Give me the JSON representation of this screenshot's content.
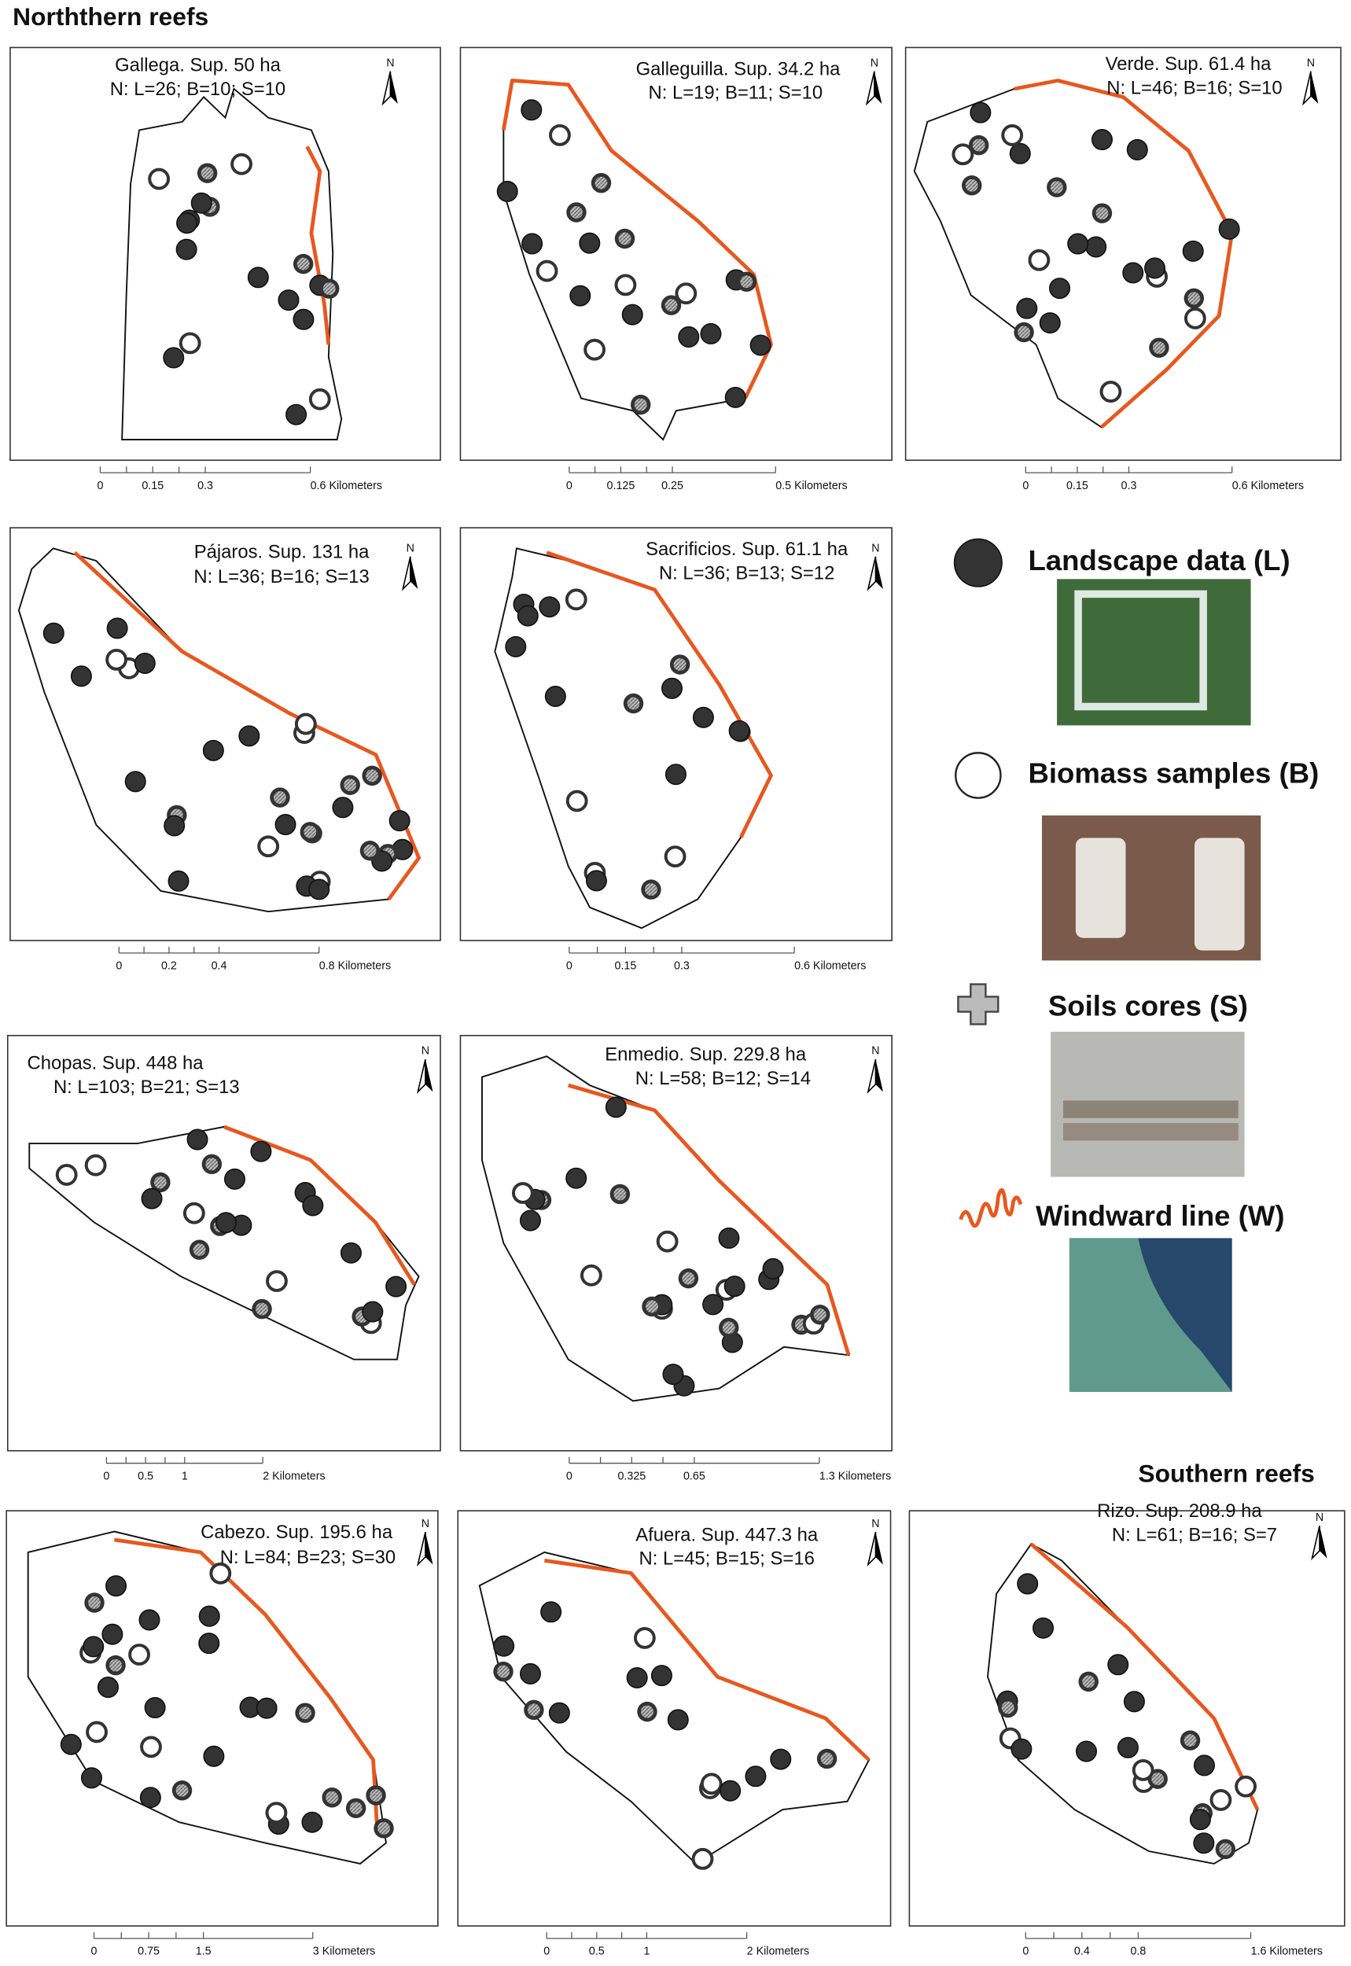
{
  "header": {
    "title": "Norththern reefs",
    "subtitle": "Southern reefs"
  },
  "panels": [
    {
      "title": "Gallega. Sup. 50 ha",
      "counts": "N: L=26; B=10; S=10",
      "north": "N",
      "scale": [
        "0",
        "0.15",
        "0.3",
        "0.6 Kilometers"
      ]
    },
    {
      "title": "Galleguilla. Sup. 34.2 ha",
      "counts": "N: L=19; B=11; S=10",
      "north": "N",
      "scale": [
        "0",
        "0.125",
        "0.25",
        "0.5 Kilometers"
      ]
    },
    {
      "title": "Verde. Sup. 61.4 ha",
      "counts": "N: L=46; B=16; S=10",
      "north": "N",
      "scale": [
        "0",
        "0.15",
        "0.3",
        "0.6 Kilometers"
      ]
    },
    {
      "title": "Pájaros. Sup. 131 ha",
      "counts": "N: L=36; B=16; S=13",
      "north": "N",
      "scale": [
        "0",
        "0.2",
        "0.4",
        "0.8 Kilometers"
      ]
    },
    {
      "title": "Sacrificios. Sup. 61.1 ha",
      "counts": "N: L=36; B=13; S=12",
      "north": "N",
      "scale": [
        "0",
        "0.15",
        "0.3",
        "0.6 Kilometers"
      ]
    },
    {
      "title": "Chopas. Sup. 448 ha",
      "counts": "N: L=103; B=21; S=13",
      "north": "N",
      "scale": [
        "0",
        "0.5",
        "1",
        "2 Kilometers"
      ]
    },
    {
      "title": "Enmedio. Sup. 229.8 ha",
      "counts": "N: L=58; B=12; S=14",
      "north": "N",
      "scale": [
        "0",
        "0.325",
        "0.65",
        "1.3 Kilometers"
      ]
    },
    {
      "title": "Cabezo. Sup. 195.6 ha",
      "counts": "N: L=84; B=23; S=30",
      "north": "N",
      "scale": [
        "0",
        "0.75",
        "1.5",
        "3 Kilometers"
      ]
    },
    {
      "title": "Afuera. Sup. 447.3 ha",
      "counts": "N: L=45; B=15; S=16",
      "north": "N",
      "scale": [
        "0",
        "0.5",
        "1",
        "2 Kilometers"
      ]
    },
    {
      "title": "Rizo. Sup. 208.9 ha",
      "counts": "N: L=61; B=16; S=7",
      "north": "N",
      "scale": [
        "0",
        "0.4",
        "0.8",
        "1.6 Kilometers"
      ]
    }
  ],
  "legend": [
    {
      "label": "Landscape data (L)"
    },
    {
      "label": "Biomass samples (B)"
    },
    {
      "label": "Soils cores (S)"
    },
    {
      "label": "Windward line (W)"
    }
  ]
}
